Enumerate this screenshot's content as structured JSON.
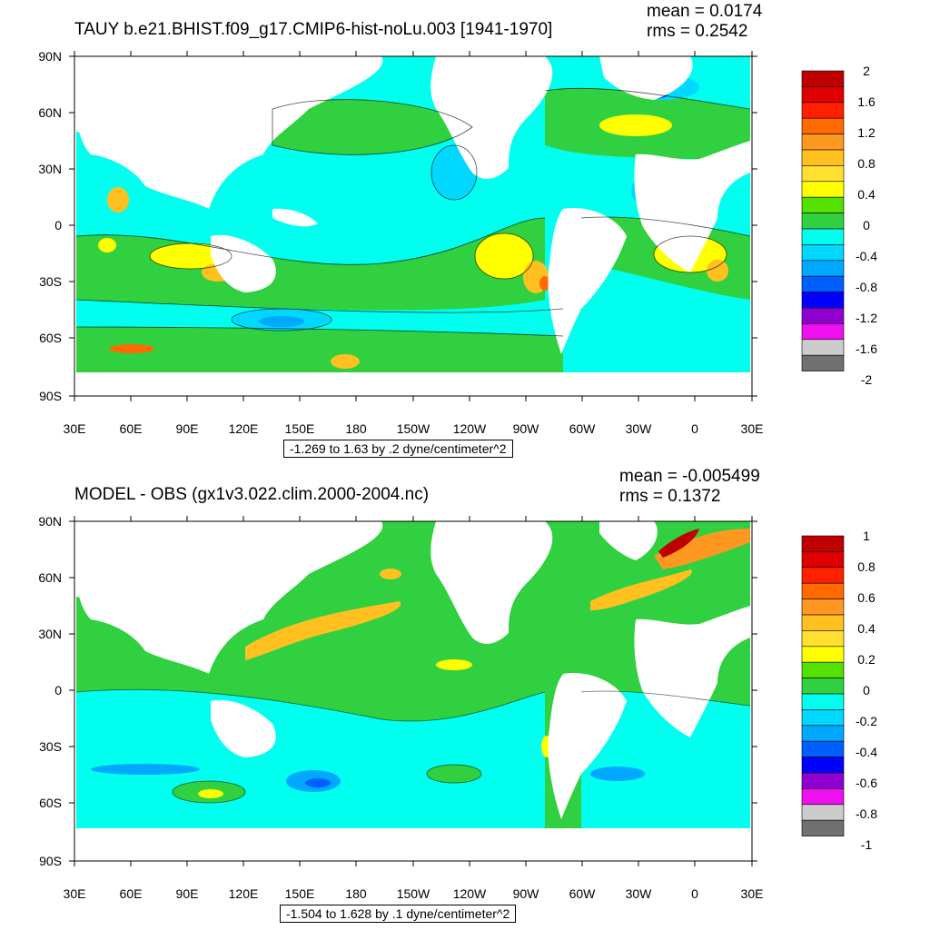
{
  "panels": [
    {
      "title": "TAUY b.e21.BHIST.f09_g17.CMIP6-hist-noLu.003 [1941-1970]",
      "mean": "mean = 0.0174",
      "rms": "rms = 0.2542",
      "info": "-1.269 to 1.63 by .2 dyne/centimeter^2",
      "colorbar_labels": [
        "2",
        "1.6",
        "1.2",
        "0.8",
        "0.4",
        "0",
        "-0.4",
        "-0.8",
        "-1.2",
        "-1.6",
        "-2"
      ],
      "colorbar_colors": [
        "#c00000",
        "#e00000",
        "#ff2000",
        "#ff6a00",
        "#ff9820",
        "#ffc020",
        "#ffe030",
        "#ffff00",
        "#54e000",
        "#30d040",
        "#00ffee",
        "#00d8ff",
        "#00a8ff",
        "#0060ff",
        "#0000ff",
        "#9000d0",
        "#ee10ee",
        "#cccccc",
        "#707070"
      ]
    },
    {
      "title": "MODEL - OBS (gx1v3.022.clim.2000-2004.nc)",
      "mean": "mean = -0.005499",
      "rms": "rms = 0.1372",
      "info": "-1.504 to 1.628 by .1 dyne/centimeter^2",
      "colorbar_labels": [
        "1",
        "0.8",
        "0.6",
        "0.4",
        "0.2",
        "0",
        "-0.2",
        "-0.4",
        "-0.6",
        "-0.8",
        "-1"
      ],
      "colorbar_colors": [
        "#c00000",
        "#e00000",
        "#ff2000",
        "#ff6a00",
        "#ff9820",
        "#ffc020",
        "#ffe030",
        "#ffff00",
        "#54e000",
        "#30d040",
        "#00ffee",
        "#00d8ff",
        "#00a8ff",
        "#0060ff",
        "#0000ff",
        "#9000d0",
        "#ee10ee",
        "#cccccc",
        "#707070"
      ]
    }
  ],
  "lat_labels": [
    "90N",
    "60N",
    "30N",
    "0",
    "30S",
    "60S",
    "90S"
  ],
  "lon_labels": [
    "30E",
    "60E",
    "90E",
    "120E",
    "150E",
    "180",
    "150W",
    "120W",
    "90W",
    "60W",
    "30W",
    "0",
    "30E"
  ],
  "colors": {
    "ocean_base": "#00ffee",
    "land": "#ffffff",
    "frame": "#000000"
  }
}
